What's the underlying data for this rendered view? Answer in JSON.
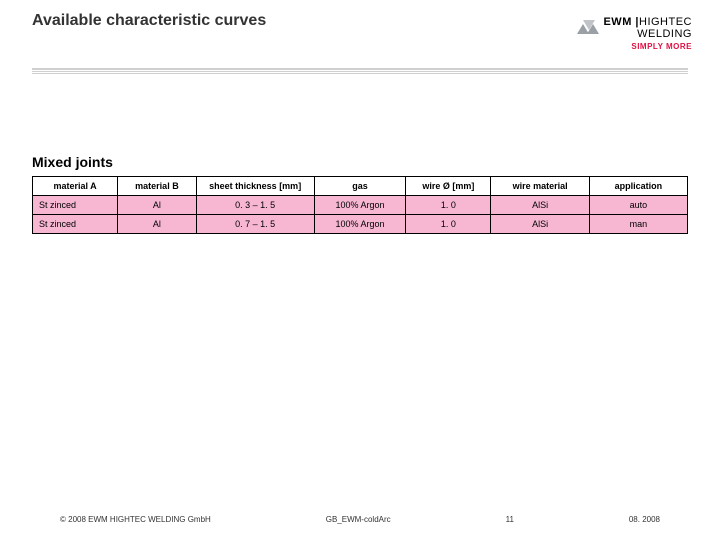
{
  "header": {
    "title": "Available characteristic curves",
    "logo": {
      "brand_a": "EWM",
      "brand_b": "HIGHTEC",
      "brand_c": "WELDING",
      "tagline": "SIMPLY MORE"
    }
  },
  "section_title": "Mixed joints",
  "table": {
    "columns": [
      "material A",
      "material B",
      "sheet thickness [mm]",
      "gas",
      "wire Ø [mm]",
      "wire material",
      "application"
    ],
    "rows": [
      [
        "St zinced",
        "Al",
        "0. 3 – 1. 5",
        "100% Argon",
        "1. 0",
        "AlSi",
        "auto"
      ],
      [
        "St zinced",
        "Al",
        "0. 7 – 1. 5",
        "100% Argon",
        "1. 0",
        "AlSi",
        "man"
      ]
    ],
    "row_bg": "#f7b6d2",
    "border_color": "#000000",
    "font_size": 9
  },
  "footer": {
    "copyright": "© 2008 EWM HIGHTEC WELDING GmbH",
    "doc_code": "GB_EWM-coldArc",
    "page": "11",
    "date": "08. 2008"
  },
  "colors": {
    "rule": "#cfcfcf",
    "tagline": "#d14",
    "text": "#333333"
  }
}
